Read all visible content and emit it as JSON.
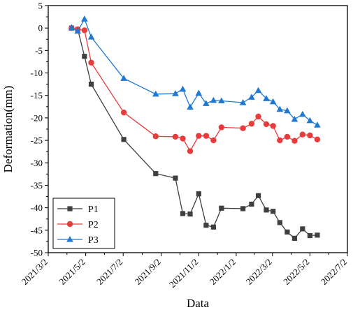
{
  "chart_data": {
    "type": "line",
    "xlabel": "Data",
    "ylabel": "Deformation(mm)",
    "x_ticks": [
      "2021/3/2",
      "2021/5/2",
      "2021/7/2",
      "2021/9/2",
      "2021/11/2",
      "2022/1/2",
      "2022/3/2",
      "2022/5/2",
      "2022/7/2"
    ],
    "xlim": [
      "2021/3/2",
      "2022/7/2"
    ],
    "ylim": [
      -50,
      5
    ],
    "y_ticks": [
      5,
      0,
      -5,
      -10,
      -15,
      -20,
      -25,
      -30,
      -35,
      -40,
      -45,
      -50
    ],
    "grid": false,
    "legend_position": "bottom-left",
    "series": [
      {
        "name": "P1",
        "color": "#3f3f3f",
        "marker": "square",
        "points": [
          [
            "2021/4/9",
            0
          ],
          [
            "2021/4/19",
            -0.3
          ],
          [
            "2021/4/30",
            -6.3
          ],
          [
            "2021/5/11",
            -12.5
          ],
          [
            "2021/7/3",
            -24.8
          ],
          [
            "2021/8/24",
            -32.4
          ],
          [
            "2021/9/25",
            -33.4
          ],
          [
            "2021/10/7",
            -41.3
          ],
          [
            "2021/10/19",
            -41.4
          ],
          [
            "2021/11/2",
            -36.9
          ],
          [
            "2021/11/14",
            -43.9
          ],
          [
            "2021/11/26",
            -44.3
          ],
          [
            "2021/12/9",
            -40.1
          ],
          [
            "2022/1/13",
            -40.2
          ],
          [
            "2022/1/27",
            -39.2
          ],
          [
            "2022/2/7",
            -37.3
          ],
          [
            "2022/2/20",
            -40.5
          ],
          [
            "2022/3/3",
            -40.8
          ],
          [
            "2022/3/14",
            -43.3
          ],
          [
            "2022/3/26",
            -45.4
          ],
          [
            "2022/4/7",
            -46.8
          ],
          [
            "2022/4/20",
            -44.7
          ],
          [
            "2022/5/2",
            -46.2
          ],
          [
            "2022/5/14",
            -46.1
          ]
        ]
      },
      {
        "name": "P2",
        "color": "#e83c3c",
        "marker": "circle",
        "points": [
          [
            "2021/4/9",
            0
          ],
          [
            "2021/4/19",
            -0.3
          ],
          [
            "2021/4/30",
            -0.5
          ],
          [
            "2021/5/11",
            -7.7
          ],
          [
            "2021/7/3",
            -18.8
          ],
          [
            "2021/8/24",
            -24.1
          ],
          [
            "2021/9/25",
            -24.2
          ],
          [
            "2021/10/7",
            -24.6
          ],
          [
            "2021/10/19",
            -27.4
          ],
          [
            "2021/11/2",
            -24.0
          ],
          [
            "2021/11/14",
            -24.0
          ],
          [
            "2021/11/26",
            -25.0
          ],
          [
            "2021/12/9",
            -22.1
          ],
          [
            "2022/1/13",
            -22.3
          ],
          [
            "2022/1/27",
            -21.3
          ],
          [
            "2022/2/7",
            -19.7
          ],
          [
            "2022/2/20",
            -21.4
          ],
          [
            "2022/3/3",
            -21.8
          ],
          [
            "2022/3/14",
            -25.0
          ],
          [
            "2022/3/26",
            -24.2
          ],
          [
            "2022/4/7",
            -25.1
          ],
          [
            "2022/4/20",
            -23.7
          ],
          [
            "2022/5/2",
            -23.9
          ],
          [
            "2022/5/14",
            -24.8
          ]
        ]
      },
      {
        "name": "P3",
        "color": "#1f78d1",
        "marker": "triangle",
        "points": [
          [
            "2021/4/9",
            0.1
          ],
          [
            "2021/4/19",
            -0.7
          ],
          [
            "2021/4/30",
            2.0
          ],
          [
            "2021/5/11",
            -2.0
          ],
          [
            "2021/7/3",
            -11.2
          ],
          [
            "2021/8/24",
            -14.7
          ],
          [
            "2021/9/25",
            -14.6
          ],
          [
            "2021/10/7",
            -13.6
          ],
          [
            "2021/10/19",
            -17.6
          ],
          [
            "2021/11/2",
            -14.5
          ],
          [
            "2021/11/14",
            -16.8
          ],
          [
            "2021/11/26",
            -16.1
          ],
          [
            "2021/12/9",
            -16.2
          ],
          [
            "2022/1/13",
            -16.6
          ],
          [
            "2022/1/27",
            -15.4
          ],
          [
            "2022/2/7",
            -13.9
          ],
          [
            "2022/2/20",
            -15.7
          ],
          [
            "2022/3/3",
            -16.4
          ],
          [
            "2022/3/14",
            -18.1
          ],
          [
            "2022/3/26",
            -18.4
          ],
          [
            "2022/4/7",
            -20.3
          ],
          [
            "2022/4/20",
            -19.2
          ],
          [
            "2022/5/2",
            -20.6
          ],
          [
            "2022/5/14",
            -21.6
          ]
        ]
      }
    ]
  }
}
